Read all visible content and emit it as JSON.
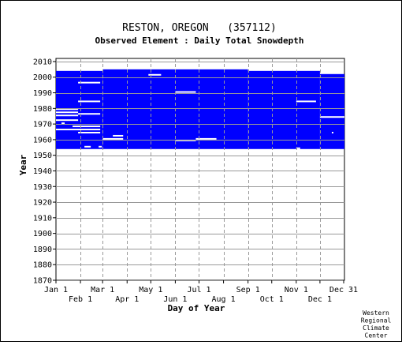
{
  "chart_data": {
    "type": "heatmap",
    "title": "RESTON, OREGON   (357112)",
    "subtitle": "Observed Element : Daily Total Snowdepth",
    "xlabel": "Day of Year",
    "ylabel": "Year",
    "ylim": [
      1870,
      2012
    ],
    "xlim": [
      1,
      366
    ],
    "x_ticks_upper": [
      {
        "label": "Jan 1",
        "day": 1
      },
      {
        "label": "Mar 1",
        "day": 60
      },
      {
        "label": "May 1",
        "day": 121
      },
      {
        "label": "Jul 1",
        "day": 182
      },
      {
        "label": "Sep 1",
        "day": 244
      },
      {
        "label": "Nov 1",
        "day": 305
      },
      {
        "label": "Dec 31",
        "day": 365
      }
    ],
    "x_ticks_lower": [
      {
        "label": "Feb 1",
        "day": 32
      },
      {
        "label": "Apr 1",
        "day": 91
      },
      {
        "label": "Jun 1",
        "day": 152
      },
      {
        "label": "Aug 1",
        "day": 213
      },
      {
        "label": "Oct 1",
        "day": 274
      },
      {
        "label": "Dec 1",
        "day": 335
      }
    ],
    "y_ticks": [
      1870,
      1880,
      1890,
      1900,
      1910,
      1920,
      1930,
      1940,
      1950,
      1960,
      1970,
      1980,
      1990,
      2000,
      2010
    ],
    "grid": true,
    "data_color": "#0000ff",
    "record_blocks": [
      {
        "day_start": 1,
        "day_end": 60,
        "year_start": 1954,
        "year_end": 2004
      },
      {
        "day_start": 60,
        "day_end": 244,
        "year_start": 1954,
        "year_end": 2005
      },
      {
        "day_start": 244,
        "day_end": 335,
        "year_start": 1954,
        "year_end": 2004
      },
      {
        "day_start": 335,
        "day_end": 366,
        "year_start": 1954,
        "year_end": 2002
      }
    ],
    "missing_segments": [
      {
        "year": 1996.5,
        "day_start": 29,
        "day_end": 57
      },
      {
        "year": 1984.5,
        "day_start": 29,
        "day_end": 57
      },
      {
        "year": 1979.5,
        "day_start": 1,
        "day_end": 29
      },
      {
        "year": 1977.5,
        "day_start": 1,
        "day_end": 29
      },
      {
        "year": 1976.5,
        "day_start": 29,
        "day_end": 57
      },
      {
        "year": 1975.5,
        "day_start": 1,
        "day_end": 29
      },
      {
        "year": 1972.5,
        "day_start": 1,
        "day_end": 29
      },
      {
        "year": 1970.5,
        "day_start": 8,
        "day_end": 12
      },
      {
        "year": 1968.5,
        "day_start": 22,
        "day_end": 57
      },
      {
        "year": 1966.5,
        "day_start": 1,
        "day_end": 57
      },
      {
        "year": 1964.5,
        "day_start": 29,
        "day_end": 57
      },
      {
        "year": 1962.5,
        "day_start": 73,
        "day_end": 86
      },
      {
        "year": 1960.5,
        "day_start": 60,
        "day_end": 86
      },
      {
        "year": 1959.5,
        "day_start": 152,
        "day_end": 178
      },
      {
        "year": 1960.5,
        "day_start": 178,
        "day_end": 204
      },
      {
        "year": 2001.5,
        "day_start": 118,
        "day_end": 134
      },
      {
        "year": 1990.5,
        "day_start": 152,
        "day_end": 178
      },
      {
        "year": 1984.5,
        "day_start": 305,
        "day_end": 330
      },
      {
        "year": 1974.5,
        "day_start": 335,
        "day_end": 366
      },
      {
        "year": 1955.5,
        "day_start": 37,
        "day_end": 45
      },
      {
        "year": 1955.5,
        "day_start": 55,
        "day_end": 59
      },
      {
        "year": 1954.5,
        "day_start": 305,
        "day_end": 310
      },
      {
        "year": 1964.5,
        "day_start": 350,
        "day_end": 352
      }
    ],
    "credit": [
      "Western",
      "Regional",
      "Climate",
      "Center"
    ]
  }
}
